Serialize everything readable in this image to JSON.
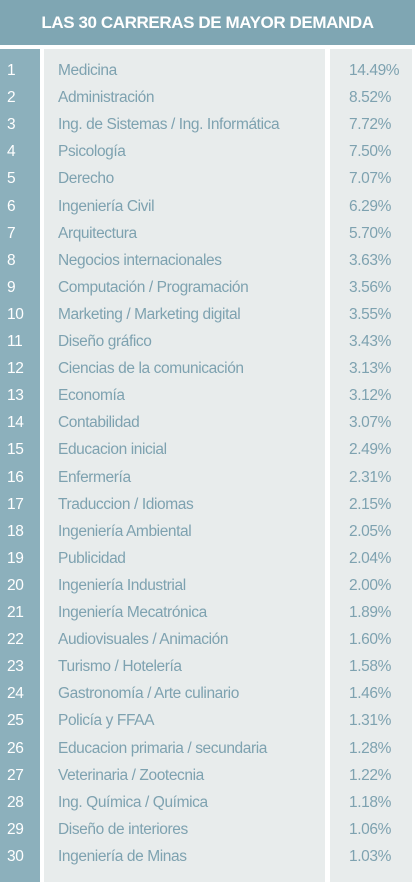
{
  "header": {
    "title": "LAS 30 CARRERAS DE MAYOR DEMANDA"
  },
  "table": {
    "rows": [
      [
        1,
        "Medicina",
        "14.49%"
      ],
      [
        2,
        "Administración",
        "8.52%"
      ],
      [
        3,
        "Ing. de Sistemas / Ing. Informática",
        "7.72%"
      ],
      [
        4,
        "Psicología",
        "7.50%"
      ],
      [
        5,
        "Derecho",
        "7.07%"
      ],
      [
        6,
        "Ingeniería Civil",
        "6.29%"
      ],
      [
        7,
        "Arquitectura",
        "5.70%"
      ],
      [
        8,
        "Negocios internacionales",
        "3.63%"
      ],
      [
        9,
        "Computación / Programación",
        "3.56%"
      ],
      [
        10,
        "Marketing / Marketing digital",
        "3.55%"
      ],
      [
        11,
        "Diseño gráfico",
        "3.43%"
      ],
      [
        12,
        "Ciencias de la comunicación",
        "3.13%"
      ],
      [
        13,
        "Economía",
        "3.12%"
      ],
      [
        14,
        "Contabilidad",
        "3.07%"
      ],
      [
        15,
        "Educacion inicial",
        "2.49%"
      ],
      [
        16,
        "Enfermería",
        "2.31%"
      ],
      [
        17,
        "Traduccion / Idiomas",
        "2.15%"
      ],
      [
        18,
        "Ingeniería Ambiental",
        "2.05%"
      ],
      [
        19,
        "Publicidad",
        "2.04%"
      ],
      [
        20,
        "Ingeniería Industrial",
        "2.00%"
      ],
      [
        21,
        "Ingeniería Mecatrónica",
        "1.89%"
      ],
      [
        22,
        "Audiovisuales / Animación",
        "1.60%"
      ],
      [
        23,
        "Turismo / Hotelería",
        "1.58%"
      ],
      [
        24,
        "Gastronomía / Arte culinario",
        "1.46%"
      ],
      [
        25,
        "Policía y FFAA",
        "1.31%"
      ],
      [
        26,
        "Educacion primaria / secundaria",
        "1.28%"
      ],
      [
        27,
        "Veterinaria / Zootecnia",
        "1.22%"
      ],
      [
        28,
        "Ing. Química / Química",
        "1.18%"
      ],
      [
        29,
        "Diseño de interiores",
        "1.06%"
      ],
      [
        30,
        "Ingeniería de Minas",
        "1.03%"
      ]
    ]
  }
}
